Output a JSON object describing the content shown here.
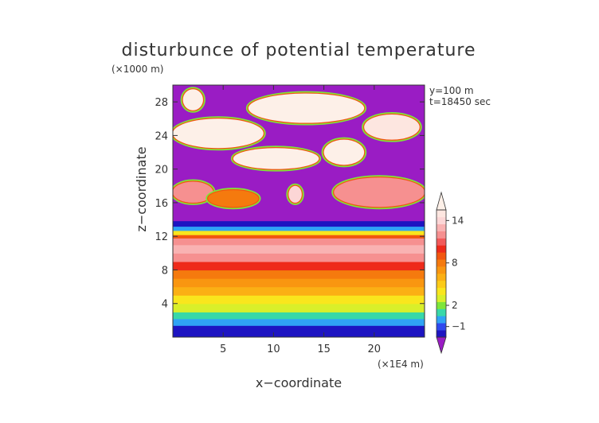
{
  "chart_data": {
    "type": "heatmap",
    "title": "disturbunce of potential temperature",
    "z_unit": "(×1000 m)",
    "x_unit": "(×1E4 m)",
    "xlabel": "x−coordinate",
    "ylabel": "z−coordinate",
    "annotations": [
      "y=100 m",
      "t=18450 sec"
    ],
    "x_range": [
      0,
      25
    ],
    "z_range": [
      0,
      30
    ],
    "x_ticks": [
      "5",
      "10",
      "15",
      "20"
    ],
    "z_ticks": [
      "4",
      "8",
      "12",
      "16",
      "20",
      "24",
      "28"
    ],
    "x_tick_values": [
      5,
      10,
      15,
      20
    ],
    "z_tick_values": [
      4,
      8,
      12,
      16,
      20,
      24,
      28
    ],
    "colorbar": {
      "levels": [
        -2,
        -1,
        0,
        1,
        2,
        3,
        4,
        5,
        6,
        7,
        8,
        9,
        10,
        11,
        12,
        13,
        14,
        15,
        16
      ],
      "labeled_ticks": [
        {
          "label": "−1",
          "value": -1
        },
        {
          "label": "2",
          "value": 2
        },
        {
          "label": "8",
          "value": 8
        },
        {
          "label": "14",
          "value": 14
        }
      ],
      "colors": [
        "#1d14c2",
        "#2e49ee",
        "#2fa3f5",
        "#38d8a8",
        "#7ee63a",
        "#d9ef2a",
        "#f9e61d",
        "#fccb18",
        "#fbb014",
        "#f99610",
        "#f57a0e",
        "#f2560f",
        "#ee2a1a",
        "#f25a5a",
        "#f69090",
        "#f9b2b2",
        "#fcd6d6",
        "#fde6e0"
      ],
      "below_color": "#9a1cc4",
      "above_color": "#fdf0e8"
    },
    "background_color": "#9a1cc4",
    "profile": [
      {
        "z": 0.0,
        "v": -1.6
      },
      {
        "z": 0.7,
        "v": -1.9
      },
      {
        "z": 1.4,
        "v": -0.6
      },
      {
        "z": 2.2,
        "v": 1.0
      },
      {
        "z": 3.0,
        "v": 2.6
      },
      {
        "z": 4.0,
        "v": 4.2
      },
      {
        "z": 5.0,
        "v": 5.4
      },
      {
        "z": 6.0,
        "v": 6.6
      },
      {
        "z": 7.0,
        "v": 8.0
      },
      {
        "z": 8.0,
        "v": 9.6
      },
      {
        "z": 9.0,
        "v": 11.5
      },
      {
        "z": 10.0,
        "v": 13.0
      },
      {
        "z": 11.0,
        "v": 13.8
      },
      {
        "z": 11.8,
        "v": 11.5
      },
      {
        "z": 12.2,
        "v": 7.0
      },
      {
        "z": 12.7,
        "v": 2.5
      },
      {
        "z": 13.2,
        "v": -0.8
      },
      {
        "z": 13.8,
        "v": -3.0
      }
    ],
    "upper_features": [
      {
        "x0": 1.0,
        "x1": 3.0,
        "z0": 27.0,
        "z1": 29.5,
        "v": 16.5
      },
      {
        "x0": 0.0,
        "x1": 9.0,
        "z0": 22.5,
        "z1": 26.0,
        "v": 16.5
      },
      {
        "x0": 7.5,
        "x1": 19.0,
        "z0": 25.5,
        "z1": 29.0,
        "v": 16.5
      },
      {
        "x0": 19.0,
        "x1": 24.5,
        "z0": 23.5,
        "z1": 26.5,
        "v": 15.0
      },
      {
        "x0": 6.0,
        "x1": 14.5,
        "z0": 20.0,
        "z1": 22.5,
        "v": 16.5
      },
      {
        "x0": 15.0,
        "x1": 19.0,
        "z0": 20.5,
        "z1": 23.5,
        "v": 16.5
      },
      {
        "x0": 0.0,
        "x1": 4.0,
        "z0": 16.0,
        "z1": 18.5,
        "v": 12.0
      },
      {
        "x0": 3.5,
        "x1": 8.5,
        "z0": 15.5,
        "z1": 17.5,
        "v": 8.0
      },
      {
        "x0": 16.0,
        "x1": 25.0,
        "z0": 15.5,
        "z1": 19.0,
        "v": 12.0
      },
      {
        "x0": 11.5,
        "x1": 12.8,
        "z0": 16.0,
        "z1": 18.0,
        "v": 14.0
      }
    ]
  }
}
